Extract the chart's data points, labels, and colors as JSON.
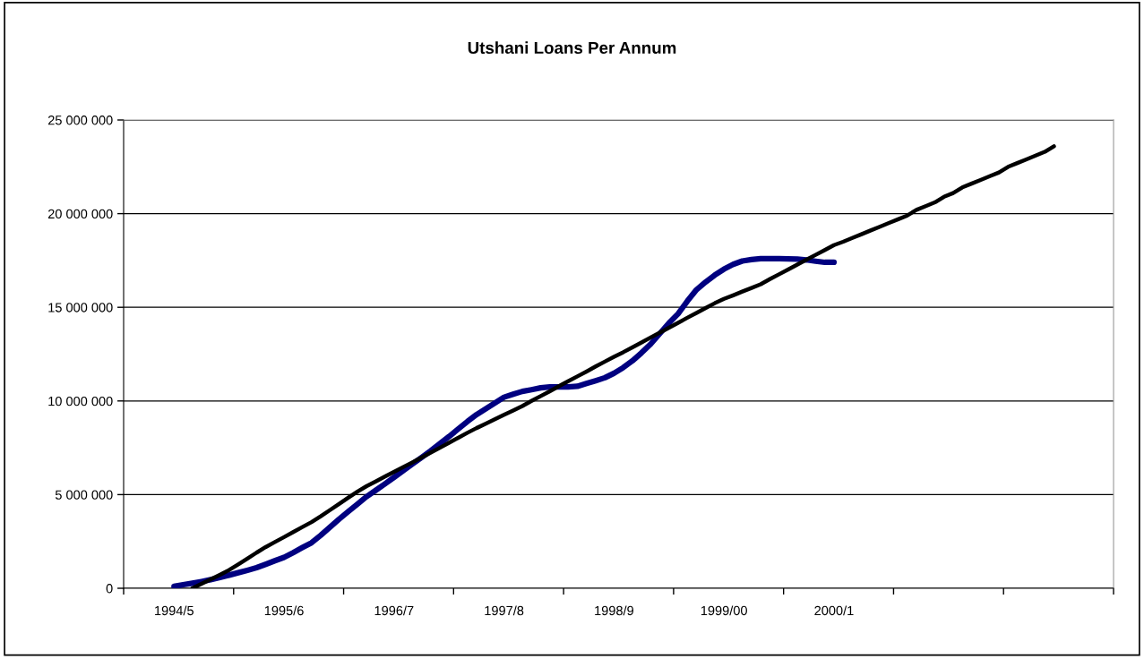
{
  "chart_data": {
    "type": "line",
    "title": "Utshani Loans Per Annum",
    "categories": [
      null,
      null,
      null,
      null,
      null,
      "1994/5",
      null,
      null,
      null,
      null,
      null,
      null,
      null,
      null,
      null,
      null,
      null,
      "1995/6",
      null,
      null,
      null,
      null,
      null,
      null,
      null,
      null,
      null,
      null,
      null,
      "1996/7",
      null,
      null,
      null,
      null,
      null,
      null,
      null,
      null,
      null,
      null,
      null,
      "1997/8",
      null,
      null,
      null,
      null,
      null,
      null,
      null,
      null,
      null,
      null,
      null,
      "1998/9",
      null,
      null,
      null,
      null,
      null,
      null,
      null,
      null,
      null,
      null,
      null,
      "1999/00",
      null,
      null,
      null,
      null,
      null,
      null,
      null,
      null,
      null,
      null,
      null,
      "2000/1",
      null,
      null,
      null,
      null,
      null,
      null,
      null,
      null,
      null,
      null,
      null,
      null,
      null,
      null,
      null,
      null,
      null,
      null,
      null,
      null,
      null,
      null,
      null,
      null,
      null,
      null,
      null,
      null,
      null,
      null
    ],
    "ylim": [
      0,
      25000000
    ],
    "yticks": [
      0,
      {
        "value": 5000000,
        "label": "5 000 000"
      },
      {
        "value": 10000000,
        "label": "10 000 000"
      },
      {
        "value": 15000000,
        "label": "15 000 000"
      },
      {
        "value": 20000000,
        "label": "20 000 000"
      },
      {
        "value": 25000000,
        "label": "25 000 000"
      }
    ],
    "grid": "y",
    "marker": "none",
    "line_style": "solid",
    "series": [
      {
        "color": "#000080",
        "values": [
          null,
          null,
          null,
          null,
          null,
          100000,
          190000,
          270000,
          360000,
          460000,
          570000,
          700000,
          830000,
          960000,
          1100000,
          1280000,
          1470000,
          1650000,
          1900000,
          2170000,
          2430000,
          2830000,
          3260000,
          3690000,
          4090000,
          4490000,
          4890000,
          5230000,
          5570000,
          5920000,
          6270000,
          6630000,
          6980000,
          7340000,
          7720000,
          8100000,
          8500000,
          8900000,
          9270000,
          9580000,
          9890000,
          10200000,
          10360000,
          10510000,
          10600000,
          10700000,
          10750000,
          10750000,
          10750000,
          10780000,
          10930000,
          11080000,
          11240000,
          11480000,
          11780000,
          12140000,
          12570000,
          13040000,
          13600000,
          14160000,
          14660000,
          15330000,
          15940000,
          16350000,
          16720000,
          17040000,
          17290000,
          17470000,
          17550000,
          17600000,
          17600000,
          17600000,
          17590000,
          17570000,
          17530000,
          17460000,
          17400000,
          17400000,
          null,
          null,
          null,
          null,
          null,
          null,
          null,
          null,
          null,
          null,
          null,
          null,
          null,
          null,
          null,
          null,
          null,
          null,
          null,
          null,
          null,
          null,
          null,
          null,
          null,
          null,
          null,
          null,
          null,
          null
        ]
      },
      {
        "color": "#000000",
        "values": [
          null,
          null,
          null,
          null,
          null,
          null,
          null,
          0,
          240000,
          480000,
          720000,
          970000,
          1270000,
          1580000,
          1900000,
          2200000,
          2470000,
          2730000,
          3000000,
          3270000,
          3530000,
          3840000,
          4170000,
          4500000,
          4830000,
          5160000,
          5450000,
          5700000,
          5960000,
          6210000,
          6470000,
          6720000,
          6980000,
          7240000,
          7500000,
          7770000,
          8030000,
          8300000,
          8550000,
          8780000,
          9020000,
          9260000,
          9490000,
          9730000,
          10000000,
          10260000,
          10520000,
          10790000,
          11050000,
          11310000,
          11570000,
          11840000,
          12100000,
          12360000,
          12600000,
          12860000,
          13120000,
          13390000,
          13650000,
          13910000,
          14170000,
          14440000,
          14700000,
          14960000,
          15220000,
          15450000,
          15640000,
          15840000,
          16030000,
          16230000,
          16500000,
          16760000,
          17020000,
          17280000,
          17540000,
          17800000,
          18060000,
          18320000,
          18500000,
          18700000,
          18900000,
          19100000,
          19300000,
          19500000,
          19700000,
          19900000,
          20200000,
          20400000,
          20600000,
          20900000,
          21100000,
          21400000,
          21600000,
          21800000,
          22000000,
          22200000,
          22500000,
          22700000,
          22900000,
          23100000,
          23300000,
          23600000,
          null,
          null,
          null,
          null,
          null,
          null
        ]
      }
    ]
  }
}
